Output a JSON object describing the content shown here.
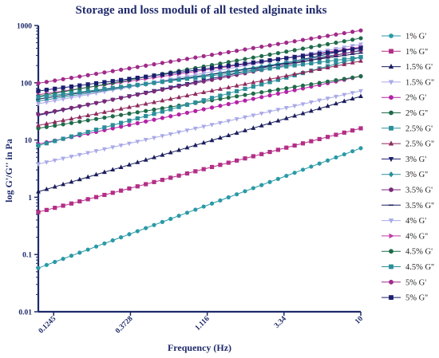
{
  "chart_data": {
    "type": "line",
    "title": "Storage and loss moduli of all tested alginate inks",
    "xlabel": "Frequency (Hz)",
    "ylabel": "log G'/G'' in Pa",
    "xscale": "log",
    "yscale": "log",
    "xlim": [
      0.1,
      10
    ],
    "ylim": [
      0.01,
      1000
    ],
    "x_ticks": [
      0.1245,
      0.3728,
      1.116,
      3.34,
      10
    ],
    "x_tick_labels": [
      "0.1245",
      "0.3728",
      "1.116",
      "3.34",
      "10"
    ],
    "y_ticks": [
      0.01,
      0.1,
      1,
      10,
      100,
      1000
    ],
    "y_tick_labels": [
      "0.01",
      "0.1",
      "1",
      "10",
      "100",
      "1000"
    ],
    "points_per_series": 40,
    "grid": false,
    "legend_position": "right",
    "series": [
      {
        "name": "1% G'",
        "color": "#2a9aa6",
        "marker": "circle",
        "y_start": 0.058,
        "y_end": 7.2
      },
      {
        "name": "1% G''",
        "color": "#b32e86",
        "marker": "square",
        "y_start": 0.55,
        "y_end": 16
      },
      {
        "name": "1.5% G'",
        "color": "#1b1f5e",
        "marker": "triangle-up",
        "y_start": 1.25,
        "y_end": 58
      },
      {
        "name": "1.5% G''",
        "color": "#a9a9e8",
        "marker": "triangle-down",
        "y_start": 3.8,
        "y_end": 72
      },
      {
        "name": "2% G'",
        "color": "#b322a6",
        "marker": "circle",
        "y_start": 8.5,
        "y_end": 130
      },
      {
        "name": "2% G''",
        "color": "#1f6b4a",
        "marker": "circle",
        "y_start": 16,
        "y_end": 130
      },
      {
        "name": "2.5% G'",
        "color": "#2a8f9a",
        "marker": "square",
        "y_start": 8,
        "y_end": 280
      },
      {
        "name": "2.5% G''",
        "color": "#8e2a5e",
        "marker": "triangle-up",
        "y_start": 18,
        "y_end": 240
      },
      {
        "name": "3% G'",
        "color": "#1b1f70",
        "marker": "triangle-down",
        "y_start": 27,
        "y_end": 420
      },
      {
        "name": "3% G''",
        "color": "#2a8f9a",
        "marker": "diamond",
        "y_start": 48,
        "y_end": 360
      },
      {
        "name": "3.5% G'",
        "color": "#7a2a7a",
        "marker": "circle",
        "y_start": 28,
        "y_end": 370
      },
      {
        "name": "3.5% G''",
        "color": "#1b1f5e",
        "marker": "line",
        "y_start": 52,
        "y_end": 330
      },
      {
        "name": "4% G'",
        "color": "#a9a9e8",
        "marker": "triangle-down",
        "y_start": 43,
        "y_end": 470
      },
      {
        "name": "4% G''",
        "color": "#c03aa8",
        "marker": "triangle-right",
        "y_start": 62,
        "y_end": 420
      },
      {
        "name": "4.5% G'",
        "color": "#1f6b4a",
        "marker": "circle",
        "y_start": 58,
        "y_end": 600
      },
      {
        "name": "4.5% G''",
        "color": "#2a8f9a",
        "marker": "square",
        "y_start": 56,
        "y_end": 280
      },
      {
        "name": "5% G'",
        "color": "#a02a8a",
        "marker": "circle",
        "y_start": 98,
        "y_end": 820
      },
      {
        "name": "5% G''",
        "color": "#1b1f70",
        "marker": "square",
        "y_start": 72,
        "y_end": 400
      }
    ]
  }
}
